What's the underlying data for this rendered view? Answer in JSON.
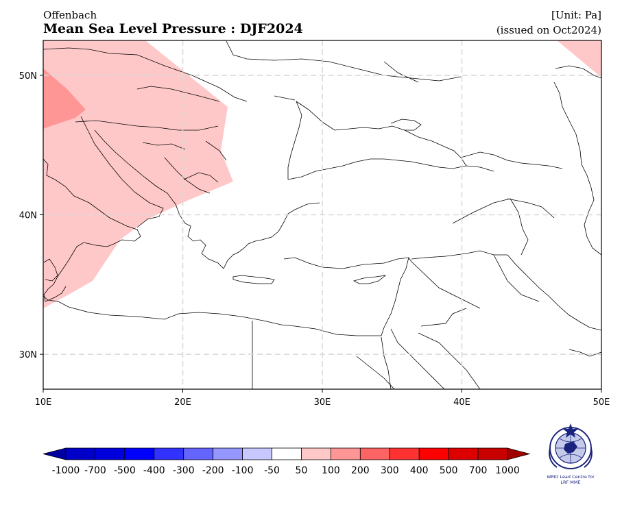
{
  "header": {
    "subtitle_left": "Offenbach",
    "title": "Mean Sea Level Pressure : DJF2024",
    "unit": "[Unit: Pa]",
    "issued": "(issued on Oct2024)"
  },
  "map": {
    "projection": "PlateCarree",
    "lon_range": [
      10,
      50
    ],
    "lat_range": [
      27.5,
      52.5
    ],
    "x_ticks": [
      "10E",
      "20E",
      "30E",
      "40E",
      "50E"
    ],
    "y_ticks": [
      "30N",
      "40N",
      "50N"
    ],
    "gridlines": true,
    "anomaly_regions": [
      {
        "label": "50",
        "color": "#ffc8c8",
        "area": "western Balkans, Italy and central Europe"
      },
      {
        "label": "100",
        "color": "#ff9696",
        "area": "northern Italy / Alps"
      },
      {
        "label": "50",
        "color": "#ffc8c8",
        "area": "north-east corner near 50E 52N"
      }
    ]
  },
  "colorbar": {
    "tick_labels": [
      "-1000",
      "-700",
      "-500",
      "-400",
      "-300",
      "-200",
      "-100",
      "-50",
      "50",
      "100",
      "200",
      "300",
      "400",
      "500",
      "700",
      "1000"
    ],
    "colors": [
      "#0000c8",
      "#0000dc",
      "#0000ff",
      "#3232ff",
      "#6464ff",
      "#9696ff",
      "#c8c8ff",
      "#ffffff",
      "#ffc8c8",
      "#ff9696",
      "#ff6464",
      "#ff3232",
      "#ff0000",
      "#dc0000",
      "#c80000"
    ],
    "under_color": "#0000a0",
    "over_color": "#a00000"
  },
  "logo": {
    "line1": "WMO Lead Centre for",
    "line2": "LRF MME"
  }
}
